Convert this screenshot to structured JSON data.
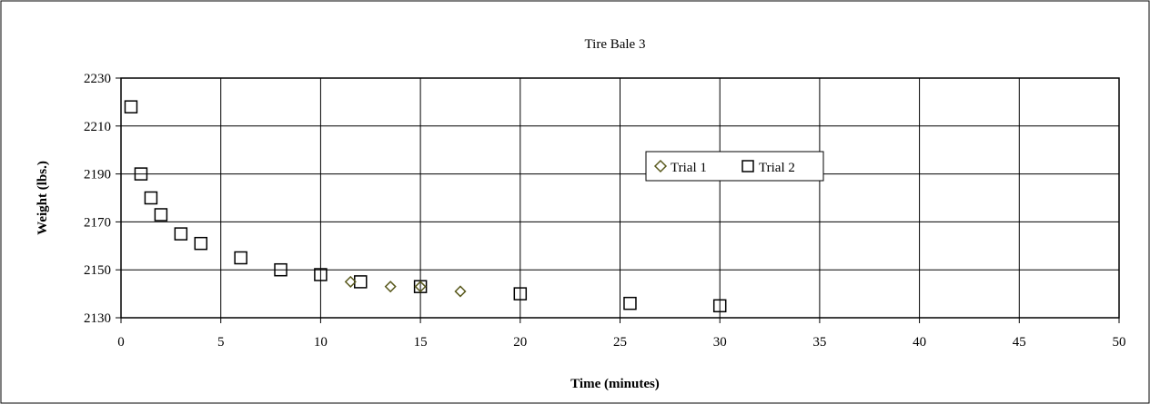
{
  "chart_data": {
    "type": "scatter",
    "title": "Tire Bale 3",
    "xlabel": "Time (minutes)",
    "ylabel": "Weight (lbs.)",
    "xlim": [
      0,
      50
    ],
    "ylim": [
      2130,
      2230
    ],
    "xticks": [
      0,
      5,
      10,
      15,
      20,
      25,
      30,
      35,
      40,
      45,
      50
    ],
    "yticks": [
      2130,
      2150,
      2170,
      2190,
      2210,
      2230
    ],
    "grid": true,
    "legend_position": "center-right",
    "series": [
      {
        "name": "Trial 1",
        "marker": "diamond",
        "color": "#5a5a1e",
        "x": [
          11.5,
          13.5,
          15,
          17
        ],
        "y": [
          2145,
          2143,
          2143,
          2141
        ]
      },
      {
        "name": "Trial 2",
        "marker": "square",
        "color": "#000000",
        "x": [
          0.5,
          1,
          1.5,
          2,
          3,
          4,
          6,
          8,
          10,
          12,
          15,
          20,
          25.5,
          30
        ],
        "y": [
          2218,
          2190,
          2180,
          2173,
          2165,
          2161,
          2155,
          2150,
          2148,
          2145,
          2143,
          2140,
          2136,
          2135
        ]
      }
    ]
  }
}
